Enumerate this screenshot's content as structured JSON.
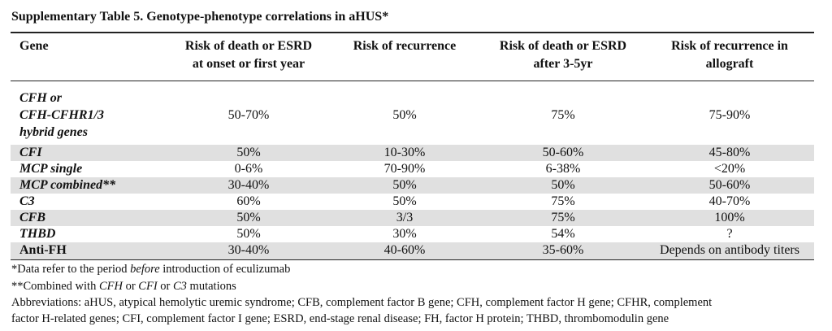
{
  "title": "Supplementary Table 5. Genotype-phenotype correlations in aHUS*",
  "headers": {
    "gene": "Gene",
    "col1_line1": "Risk of death or ESRD",
    "col1_line2": "at onset or first year",
    "col2": "Risk of recurrence",
    "col3_line1": "Risk of death or ESRD",
    "col3_line2": "after 3-5yr",
    "col4_line1": "Risk of recurrence in",
    "col4_line2": "allograft"
  },
  "rows": [
    {
      "gene_line1": "CFH or",
      "gene_line2": "CFH-CFHR1/3",
      "gene_line3": "hybrid genes",
      "v1": "50-70%",
      "v2": "50%",
      "v3": "75%",
      "v4": "75-90%"
    },
    {
      "gene": "CFI",
      "v1": "50%",
      "v2": "10-30%",
      "v3": "50-60%",
      "v4": "45-80%"
    },
    {
      "gene": "MCP single",
      "v1": "0-6%",
      "v2": "70-90%",
      "v3": "6-38%",
      "v4": "<20%"
    },
    {
      "gene": "MCP combined**",
      "v1": "30-40%",
      "v2": "50%",
      "v3": "50%",
      "v4": "50-60%"
    },
    {
      "gene": "C3",
      "v1": "60%",
      "v2": "50%",
      "v3": "75%",
      "v4": "40-70%"
    },
    {
      "gene": "CFB",
      "v1": "50%",
      "v2": "3/3",
      "v3": "75%",
      "v4": "100%"
    },
    {
      "gene": "THBD",
      "v1": "50%",
      "v2": "30%",
      "v3": "54%",
      "v4": "?"
    },
    {
      "gene": "Anti-FH",
      "v1": "30-40%",
      "v2": "40-60%",
      "v3": "35-60%",
      "v4": "Depends on antibody titers"
    }
  ],
  "footnotes": {
    "fn1_a": "*Data refer to the period ",
    "fn1_em": "before",
    "fn1_b": " introduction of eculizumab",
    "fn2_a": "**Combined with ",
    "fn2_cfh": "CFH",
    "fn2_or1": " or ",
    "fn2_cfi": "CFI",
    "fn2_or2": " or ",
    "fn2_c3": "C3",
    "fn2_b": " mutations",
    "abbr_line1": "Abbreviations: aHUS, atypical hemolytic uremic syndrome; CFB, complement factor B gene; CFH, complement factor H gene; CFHR, complement",
    "abbr_line2": "factor H-related genes; CFI, complement factor I gene; ESRD, end-stage renal disease; FH, factor H protein; THBD, thrombomodulin gene"
  }
}
